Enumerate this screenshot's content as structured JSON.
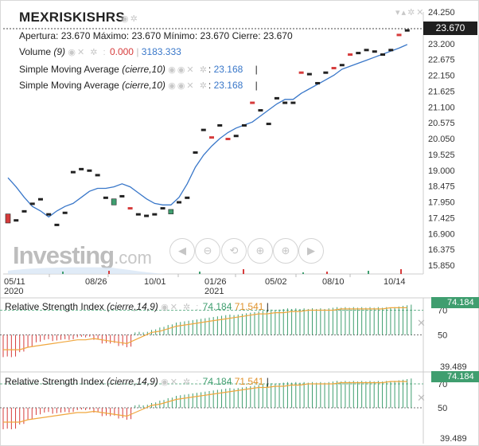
{
  "symbol": "MEXRISKISHRS",
  "ohlc": {
    "open_label": "Apertura:",
    "open": "23.670",
    "high_label": "Máximo:",
    "high": "23.670",
    "low_label": "Mínimo:",
    "low": "23.670",
    "close_label": "Cierre:",
    "close": "23.670"
  },
  "volume": {
    "label": "Volume",
    "param": "(9)",
    "v1": "0.000",
    "v2": "3183.333"
  },
  "sma1": {
    "label": "Simple Moving Average",
    "param": "(cierre,10)",
    "sep": ":",
    "value": "23.168"
  },
  "sma2": {
    "label": "Simple Moving Average",
    "param": "(cierre,10)",
    "sep": ":",
    "value": "23.168"
  },
  "price_label": "23.670",
  "logo": {
    "main": "Investing",
    "suffix": ".com"
  },
  "rsi1": {
    "label": "Relative Strength Index",
    "param": "(cierre,14,9)",
    "v1": "74.184",
    "v2": "71.541",
    "box": "74.184"
  },
  "rsi2": {
    "label": "Relative Strength Index",
    "param": "(cierre,14,9)",
    "v1": "74.184",
    "v2": "71.541",
    "box": "74.184"
  },
  "colors": {
    "up": "#3f9e6f",
    "down": "#d63c3c",
    "sma": "#3977c9",
    "signal": "#f0a73e"
  },
  "chart_data": {
    "type": "line",
    "title": "MEXRISKISHRS",
    "y_axis_ticks": [
      "24.250",
      "23.725",
      "23.200",
      "22.675",
      "22.150",
      "21.625",
      "21.100",
      "20.575",
      "20.050",
      "19.525",
      "19.000",
      "18.475",
      "17.950",
      "17.425",
      "16.900",
      "16.375",
      "15.850"
    ],
    "x_axis_ticks": [
      {
        "label": "05/11",
        "year": "2020"
      },
      {
        "label": "08/26",
        "year": ""
      },
      {
        "label": "10/01",
        "year": ""
      },
      {
        "label": "01/26",
        "year": "2021"
      },
      {
        "label": "05/02",
        "year": ""
      },
      {
        "label": "08/10",
        "year": ""
      },
      {
        "label": "10/14",
        "year": ""
      }
    ],
    "ylim": [
      15.85,
      24.25
    ],
    "candles": [
      [
        17.55,
        17.25,
        "down"
      ],
      [
        17.35,
        17.35,
        "up"
      ],
      [
        17.65,
        17.65,
        "up"
      ],
      [
        17.9,
        17.9,
        "up"
      ],
      [
        18.05,
        18.05,
        "up"
      ],
      [
        17.55,
        17.55,
        "up"
      ],
      [
        17.2,
        17.2,
        "up"
      ],
      [
        17.6,
        17.6,
        "up"
      ],
      [
        18.95,
        18.95,
        "up"
      ],
      [
        19.05,
        19.05,
        "up"
      ],
      [
        19.0,
        19.0,
        "up"
      ],
      [
        18.85,
        18.85,
        "up"
      ],
      [
        18.1,
        18.1,
        "up"
      ],
      [
        17.85,
        18.05,
        "up"
      ],
      [
        18.15,
        18.15,
        "up"
      ],
      [
        17.75,
        17.75,
        "down"
      ],
      [
        17.55,
        17.55,
        "up"
      ],
      [
        17.5,
        17.5,
        "up"
      ],
      [
        17.55,
        17.55,
        "up"
      ],
      [
        17.75,
        17.75,
        "up"
      ],
      [
        17.55,
        17.7,
        "up"
      ],
      [
        17.95,
        17.95,
        "up"
      ],
      [
        18.1,
        18.1,
        "up"
      ],
      [
        19.6,
        19.6,
        "up"
      ],
      [
        20.35,
        20.35,
        "up"
      ],
      [
        20.1,
        20.1,
        "down"
      ],
      [
        20.5,
        20.5,
        "up"
      ],
      [
        20.05,
        20.05,
        "down"
      ],
      [
        20.15,
        20.15,
        "up"
      ],
      [
        20.5,
        20.5,
        "up"
      ],
      [
        21.25,
        21.25,
        "down"
      ],
      [
        21.0,
        21.0,
        "up"
      ],
      [
        20.55,
        20.55,
        "up"
      ],
      [
        21.4,
        21.4,
        "up"
      ],
      [
        21.25,
        21.25,
        "up"
      ],
      [
        21.25,
        21.25,
        "up"
      ],
      [
        22.25,
        22.25,
        "down"
      ],
      [
        22.2,
        22.2,
        "up"
      ],
      [
        21.9,
        21.9,
        "up"
      ],
      [
        22.25,
        22.25,
        "up"
      ],
      [
        22.4,
        22.4,
        "down"
      ],
      [
        22.5,
        22.5,
        "up"
      ],
      [
        22.85,
        22.85,
        "down"
      ],
      [
        22.9,
        22.9,
        "up"
      ],
      [
        23.0,
        23.0,
        "up"
      ],
      [
        22.95,
        22.95,
        "up"
      ],
      [
        22.85,
        22.85,
        "up"
      ],
      [
        23.0,
        23.0,
        "up"
      ],
      [
        23.5,
        23.5,
        "down"
      ],
      [
        23.65,
        23.65,
        "up"
      ]
    ],
    "sma_series": {
      "name": "Simple Moving Average (cierre,10)",
      "values": [
        18.75,
        18.45,
        18.1,
        17.8,
        17.65,
        17.45,
        17.65,
        17.8,
        17.9,
        18.1,
        18.3,
        18.4,
        18.4,
        18.45,
        18.55,
        18.45,
        18.25,
        18.05,
        17.9,
        17.85,
        17.85,
        18.1,
        18.55,
        19.1,
        19.5,
        19.8,
        20.05,
        20.25,
        20.4,
        20.5,
        20.6,
        20.8,
        21.0,
        21.2,
        21.35,
        21.35,
        21.55,
        21.7,
        21.85,
        22.0,
        22.15,
        22.35,
        22.45,
        22.55,
        22.65,
        22.75,
        22.85,
        22.95,
        23.05,
        23.17
      ]
    },
    "rsi": {
      "ylim": [
        39.489,
        74.184
      ],
      "y_ticks": [
        "70",
        "50",
        "39.489"
      ],
      "rsi_values": [
        32,
        32,
        36,
        40,
        44,
        46,
        45,
        46,
        46,
        48,
        48,
        46,
        43,
        43,
        41,
        40,
        52,
        52,
        54,
        56,
        58,
        60,
        61,
        62,
        63,
        64,
        65,
        66,
        66,
        67,
        68,
        69,
        70,
        70,
        71,
        71,
        71,
        71,
        71,
        71,
        72,
        72,
        72,
        72,
        72,
        72,
        72,
        72,
        73,
        74
      ],
      "signal_values": [
        38,
        38,
        38,
        40,
        41,
        42,
        43,
        44,
        45,
        46,
        46,
        47,
        46,
        45,
        44,
        43,
        46,
        49,
        52,
        53,
        55,
        57,
        58,
        59,
        60,
        61,
        62,
        63,
        64,
        65,
        66,
        67,
        67,
        68,
        68,
        69,
        69,
        70,
        70,
        70,
        70,
        71,
        71,
        71,
        71,
        71,
        71,
        72,
        72,
        72
      ]
    }
  }
}
